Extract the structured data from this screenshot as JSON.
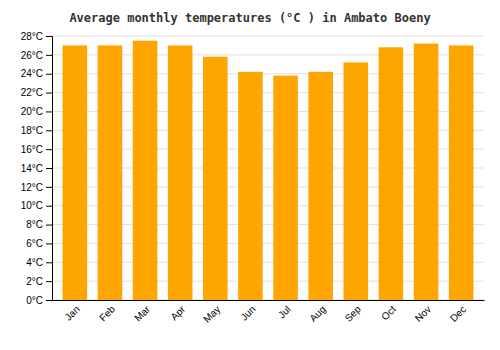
{
  "chart_data": {
    "type": "bar",
    "title": "Average monthly temperatures (°C ) in Ambato Boeny",
    "categories": [
      "Jan",
      "Feb",
      "Mar",
      "Apr",
      "May",
      "Jun",
      "Jul",
      "Aug",
      "Sep",
      "Oct",
      "Nov",
      "Dec"
    ],
    "values": [
      27.0,
      27.0,
      27.5,
      27.0,
      25.8,
      24.2,
      23.8,
      24.2,
      25.2,
      26.8,
      27.2,
      27.0
    ],
    "color": "#FFA500",
    "ylim": [
      0,
      28
    ],
    "yticks": [
      {
        "value": 0,
        "label": "0°C"
      },
      {
        "value": 2,
        "label": "2°C"
      },
      {
        "value": 4,
        "label": "4°C"
      },
      {
        "value": 6,
        "label": "6°C"
      },
      {
        "value": 8,
        "label": "8°C"
      },
      {
        "value": 10,
        "label": "10°C"
      },
      {
        "value": 12,
        "label": "12°C"
      },
      {
        "value": 14,
        "label": "14°C"
      },
      {
        "value": 16,
        "label": "16°C"
      },
      {
        "value": 18,
        "label": "18°C"
      },
      {
        "value": 20,
        "label": "20°C"
      },
      {
        "value": 22,
        "label": "22°C"
      },
      {
        "value": 24,
        "label": "24°C"
      },
      {
        "value": 26,
        "label": "26°C"
      },
      {
        "value": 28,
        "label": "28°C"
      }
    ],
    "grid": true
  }
}
